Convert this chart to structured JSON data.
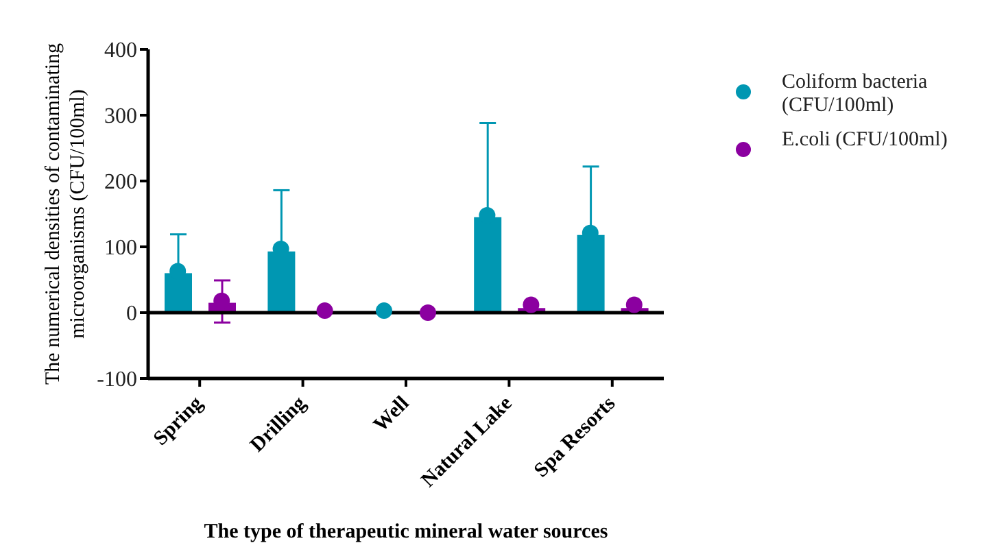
{
  "chart_data": {
    "type": "bar",
    "xlabel": "The type of therapeutic mineral water sources",
    "ylabel": "The numerical densities of contaminating microorganisms (CFU/100ml)",
    "categories": [
      "Spring",
      "Drilling",
      "Well",
      "Natural Lake",
      "Spa Resorts"
    ],
    "series": [
      {
        "name": "Coliform bacteria (CFU/100ml)",
        "color": "#0097b2",
        "values": [
          60,
          93,
          -2,
          145,
          118
        ],
        "errors": [
          [
            60,
            119
          ],
          [
            93,
            186
          ],
          null,
          [
            145,
            288
          ],
          [
            118,
            222
          ]
        ]
      },
      {
        "name": "E.coli (CFU/100ml)",
        "color": "#8b00a0",
        "values": [
          15,
          -2,
          0,
          7,
          7
        ],
        "errors": [
          [
            -15,
            49
          ],
          null,
          null,
          null,
          null
        ]
      },
      {
        "type": "scatter",
        "color": "#0097b2",
        "x": [
          "Spring",
          "Drilling",
          "Well",
          "Natural Lake",
          "Spa Resorts"
        ],
        "values": [
          63,
          97,
          3,
          148,
          121
        ]
      },
      {
        "type": "scatter",
        "color": "#8b00a0",
        "x": [
          "Spring",
          "Drilling",
          "Well",
          "Natural Lake",
          "Spa Resorts"
        ],
        "values": [
          18,
          3,
          0,
          12,
          12
        ]
      }
    ],
    "ylim": [
      -100,
      400
    ],
    "yticks": [
      -100,
      0,
      100,
      200,
      300,
      400
    ],
    "ref_lines": [
      {
        "axis": "y",
        "value": 0,
        "color": "#000000"
      }
    ],
    "grid": false,
    "legend": "top right",
    "marker": "circle"
  }
}
